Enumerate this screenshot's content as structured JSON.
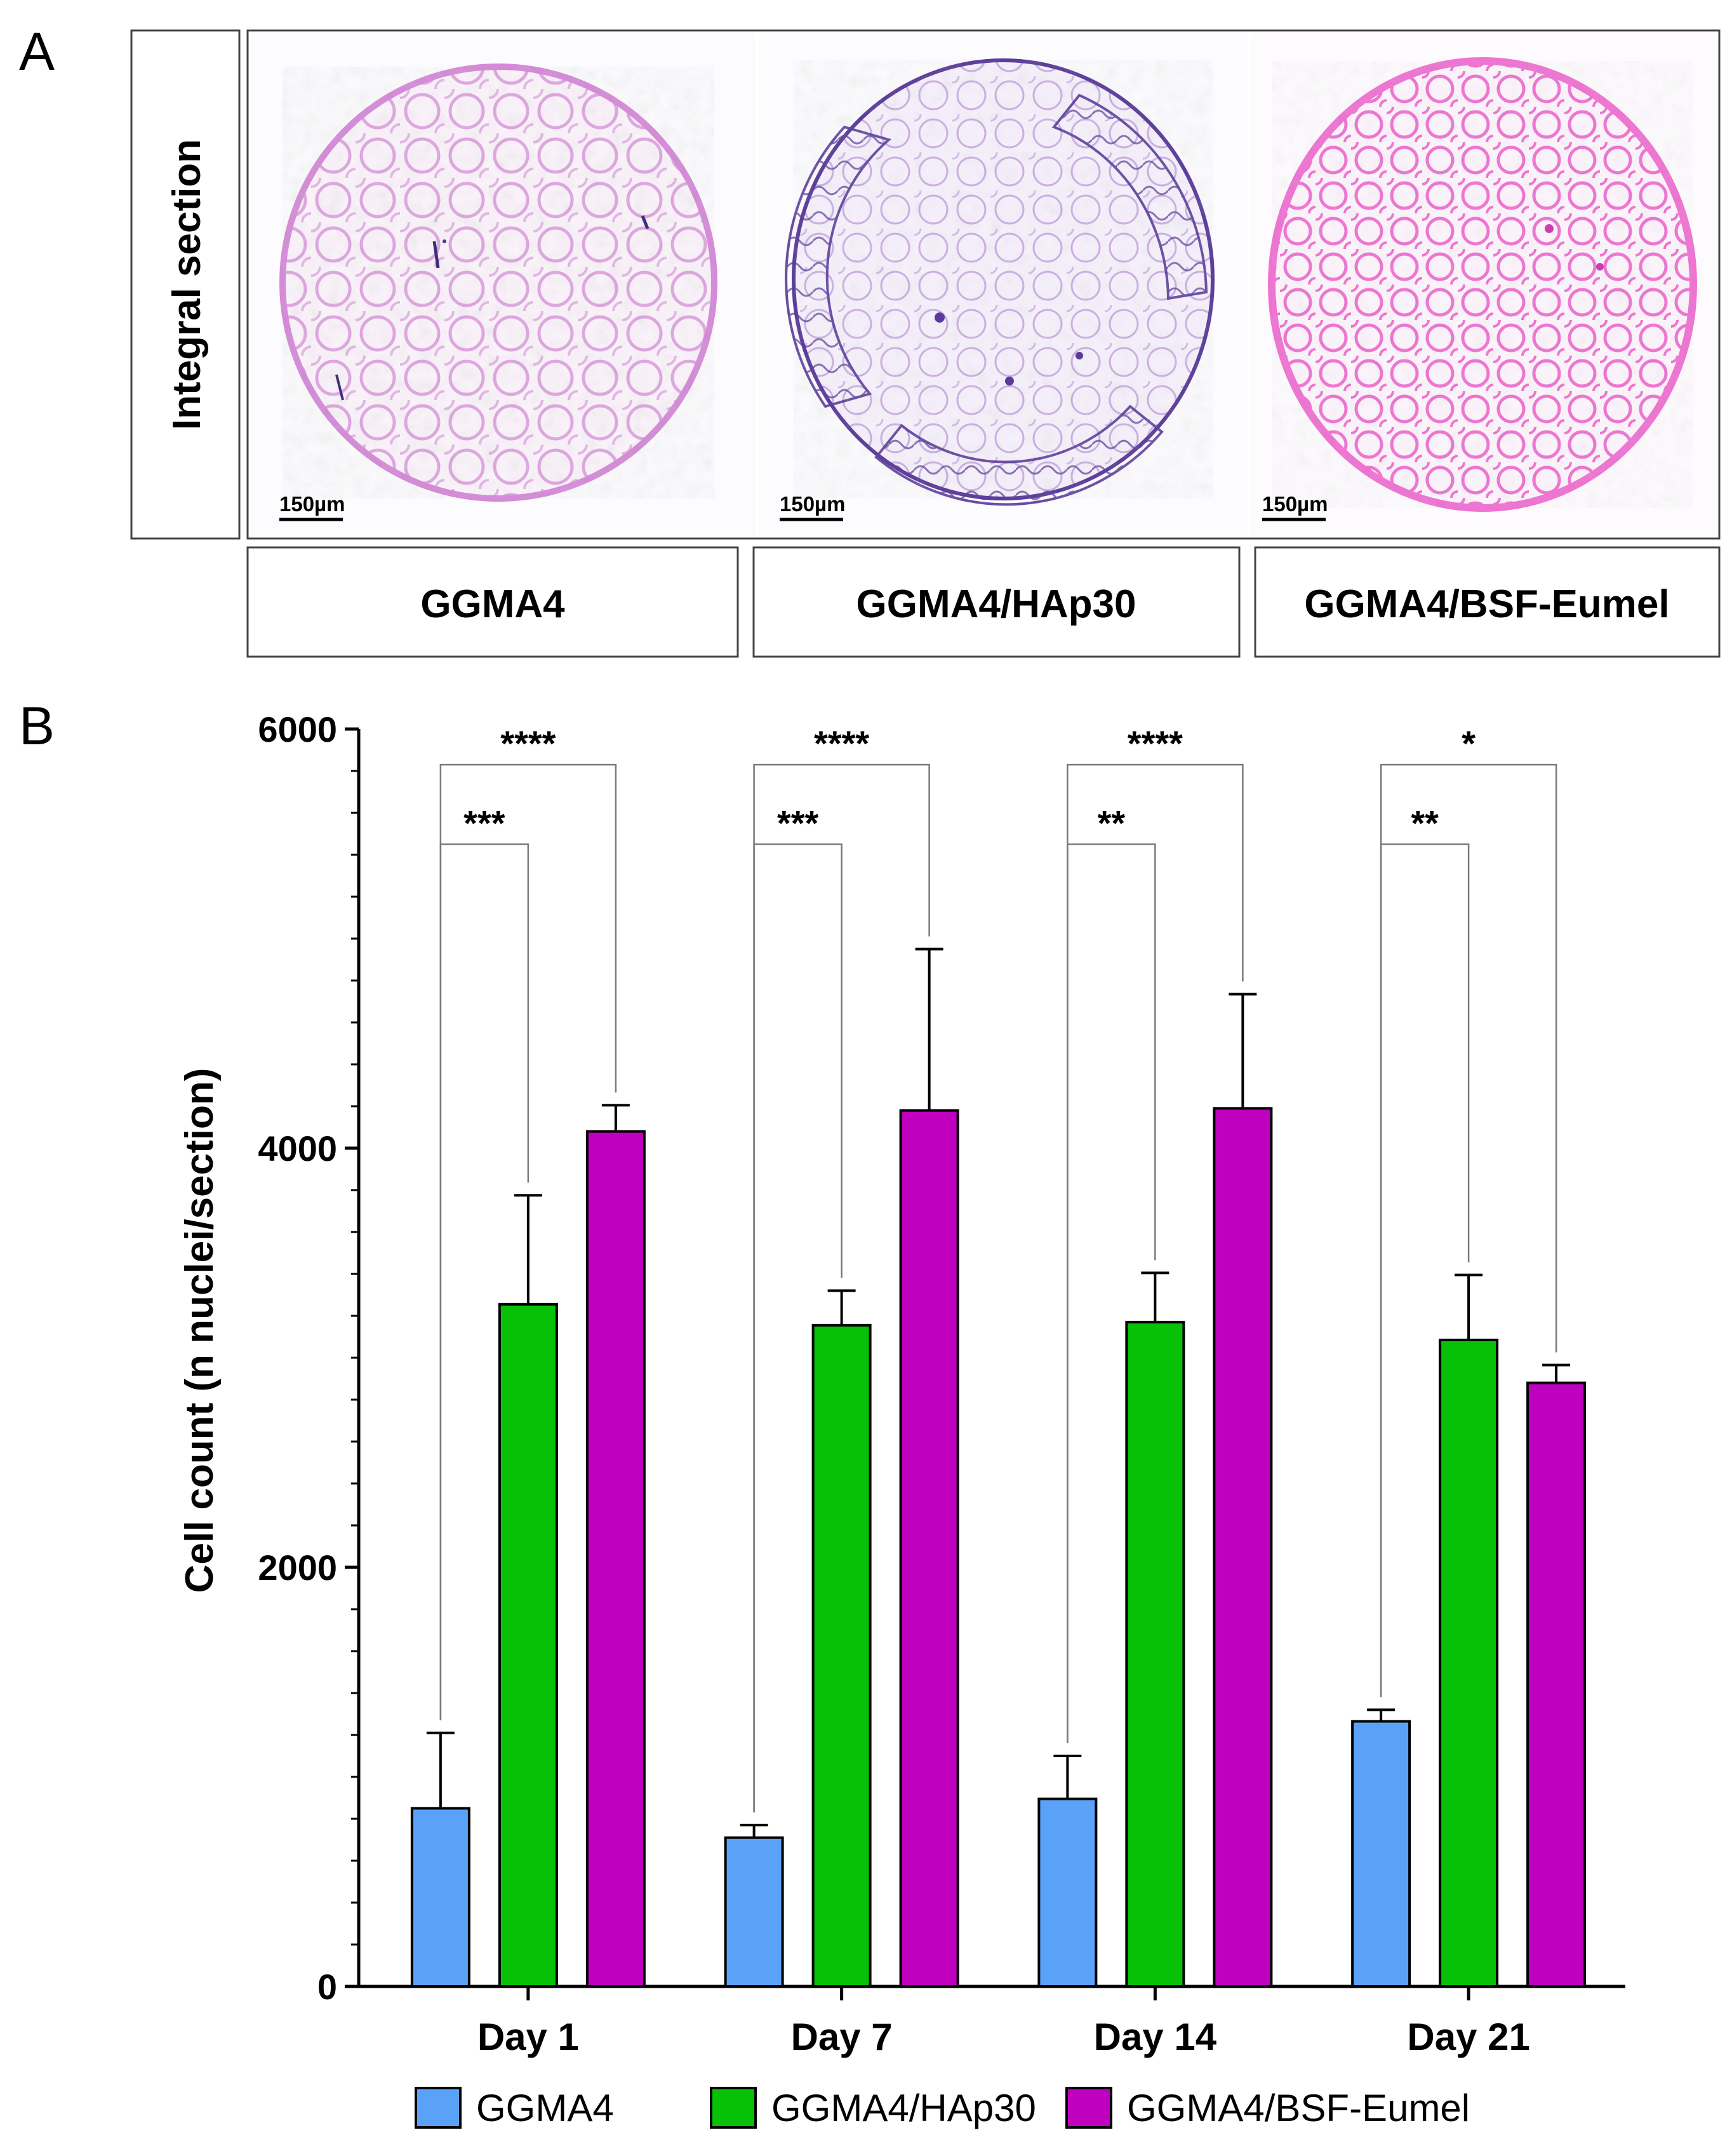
{
  "panel_a": {
    "label": "A",
    "row_header": "Integral section",
    "images": [
      {
        "label": "GGMA4",
        "scale_bar": "150µm",
        "stain": "#d58ad8",
        "accent": "#8a4fb5"
      },
      {
        "label": "GGMA4/HAp30",
        "scale_bar": "150µm",
        "stain": "#a77ad0",
        "accent": "#5a3a9a"
      },
      {
        "label": "GGMA4/BSF-Eumel",
        "scale_bar": "150µm",
        "stain": "#ef73d2",
        "accent": "#c83fb0"
      }
    ]
  },
  "panel_b": {
    "label": "B"
  },
  "chart_data": {
    "type": "bar",
    "title": "",
    "xlabel": "",
    "ylabel": "Cell count (n nuclei/section)",
    "ylim": [
      0,
      6000
    ],
    "yticks": [
      0,
      2000,
      4000,
      6000
    ],
    "categories": [
      "Day 1",
      "Day 7",
      "Day 14",
      "Day 21"
    ],
    "series": [
      {
        "name": "GGMA4",
        "color": "#5aa2f8",
        "values": [
          850,
          710,
          895,
          1265
        ],
        "errors": [
          360,
          60,
          205,
          55
        ]
      },
      {
        "name": "GGMA4/HAp30",
        "color": "#06c106",
        "values": [
          3255,
          3155,
          3170,
          3085
        ],
        "errors": [
          520,
          165,
          235,
          310
        ]
      },
      {
        "name": "GGMA4/BSF-Eumel",
        "color": "#bf00bf",
        "values": [
          4080,
          4180,
          4190,
          2880
        ],
        "errors": [
          125,
          770,
          545,
          85
        ]
      }
    ],
    "significance": [
      {
        "category": 0,
        "label": "***",
        "from_series": 0,
        "to_series": 1
      },
      {
        "category": 0,
        "label": "****",
        "from_series": 0,
        "to_series": 2
      },
      {
        "category": 1,
        "label": "***",
        "from_series": 0,
        "to_series": 1
      },
      {
        "category": 1,
        "label": "****",
        "from_series": 0,
        "to_series": 2
      },
      {
        "category": 2,
        "label": "**",
        "from_series": 0,
        "to_series": 1
      },
      {
        "category": 2,
        "label": "****",
        "from_series": 0,
        "to_series": 2
      },
      {
        "category": 3,
        "label": "**",
        "from_series": 0,
        "to_series": 1
      },
      {
        "category": 3,
        "label": "*",
        "from_series": 0,
        "to_series": 2
      }
    ],
    "legend_position": "bottom"
  }
}
